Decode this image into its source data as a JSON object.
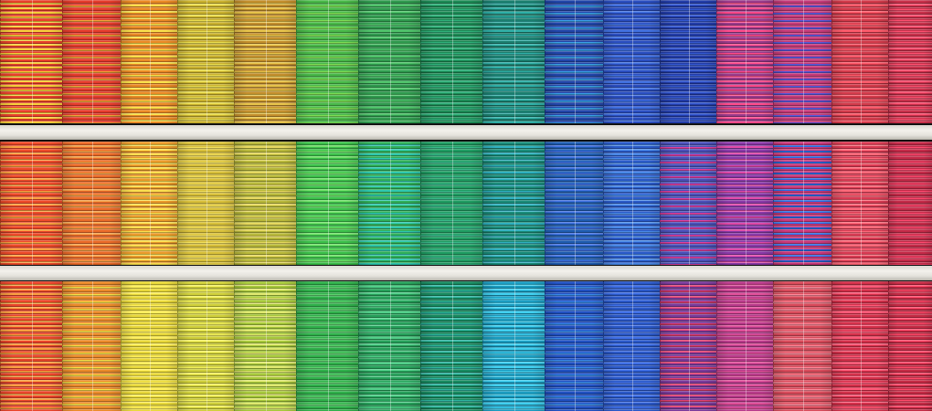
{
  "scene": {
    "subject": "facade",
    "rows": [
      {
        "colors": [
          "#e8402a",
          "#e43b2c",
          "#ea8a25",
          "#c9b12e",
          "#c28e2c",
          "#48b848",
          "#2f9a4e",
          "#1c8a55",
          "#1b7f6f",
          "#2145a8",
          "#2a4ec0",
          "#223ca8",
          "#9a3a8a",
          "#c43a78",
          "#d23a4a",
          "#c8304a"
        ],
        "stripe": [
          "#f6d03a",
          "#f1a33a",
          "#f8e04a",
          "#e9dd50",
          "#e7c44a",
          "#7fdc55",
          "#4fc46a",
          "#2fb07a",
          "#2fb0a8",
          "#3aa0e6",
          "#4070e0",
          "#3458d0",
          "#ff4a8a",
          "#5a5adc",
          "#ff5a6a",
          "#ff5070"
        ]
      },
      {
        "colors": [
          "#ee4a2a",
          "#ea6a28",
          "#ea9a2a",
          "#d8c03a",
          "#b8b83a",
          "#3cc04a",
          "#2fb05a",
          "#1f9c62",
          "#1a8c7a",
          "#1f5cb0",
          "#2a5ac8",
          "#4a50b8",
          "#8a3aa8",
          "#c8387a",
          "#d83a52",
          "#c42a48"
        ],
        "stripe": [
          "#f8a040",
          "#f4a048",
          "#fbe050",
          "#f2e060",
          "#e6d860",
          "#70e068",
          "#2fc8b0",
          "#3ab88a",
          "#2fb0c0",
          "#4070e0",
          "#4a8ae8",
          "#e040a0",
          "#e04aa8",
          "#2a6ae0",
          "#ff6a7a",
          "#ff4a70"
        ]
      },
      {
        "colors": [
          "#ea442a",
          "#ea8a2a",
          "#e8d83a",
          "#cfcf3a",
          "#a6c83a",
          "#2fb04a",
          "#26a05a",
          "#178a60",
          "#1a9cc0",
          "#2050c0",
          "#2a58c8",
          "#7a3a9a",
          "#b83a8a",
          "#d84a5a",
          "#d4304a",
          "#c42a44"
        ],
        "stripe": [
          "#f8a040",
          "#f8e04a",
          "#fff060",
          "#f2f060",
          "#e0e870",
          "#60d070",
          "#52d08a",
          "#2fb4a0",
          "#40d0f0",
          "#3a8ae8",
          "#4070e8",
          "#e04070",
          "#e0509a",
          "#ff8a9a",
          "#ff5a78",
          "#ff4a6a"
        ]
      }
    ],
    "column_count": 16
  }
}
